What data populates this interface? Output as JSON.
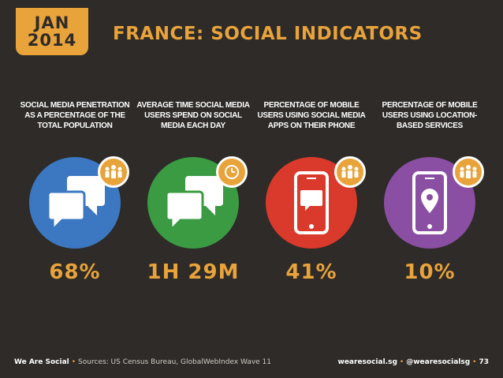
{
  "header": {
    "month": "JAN",
    "year": "2014",
    "title": "FRANCE: SOCIAL INDICATORS"
  },
  "indicators": [
    {
      "label": "SOCIAL MEDIA PENETRATION AS A PERCENTAGE OF THE TOTAL POPULATION",
      "value": "68%",
      "color": "#3b78c1",
      "icon": "chat-bubbles-icon",
      "badge_icon": "people-group-icon"
    },
    {
      "label": "AVERAGE TIME SOCIAL MEDIA USERS SPEND ON SOCIAL MEDIA EACH DAY",
      "value": "1H 29M",
      "color": "#3a9b42",
      "icon": "chat-bubbles-icon",
      "badge_icon": "clock-icon"
    },
    {
      "label": "PERCENTAGE OF MOBILE USERS USING SOCIAL MEDIA APPS ON THEIR PHONE",
      "value": "41%",
      "color": "#d93a2b",
      "icon": "mobile-chat-icon",
      "badge_icon": "people-group-icon"
    },
    {
      "label": "PERCENTAGE OF MOBILE USERS USING LOCATION-BASED SERVICES",
      "value": "10%",
      "color": "#8a4ea3",
      "icon": "mobile-location-icon",
      "badge_icon": "people-group-icon"
    }
  ],
  "footer": {
    "brand": "We Are Social",
    "sources": "Sources: US Census Bureau, GlobalWebIndex Wave 11",
    "website": "wearesocial.sg",
    "handle": "@wearesocialsg",
    "page": "73"
  },
  "colors": {
    "background": "#2e2b28",
    "accent": "#e8a33b"
  }
}
